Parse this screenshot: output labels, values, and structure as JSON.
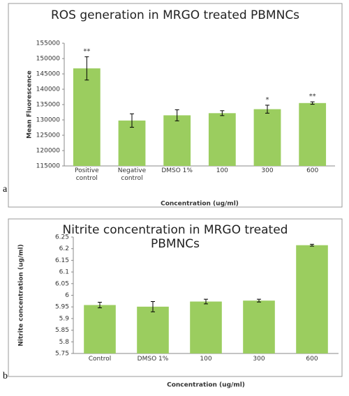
{
  "chart_data": [
    {
      "type": "bar",
      "panel_label": "a",
      "title": "ROS generation in MRGO treated PBMNCs",
      "xlabel": "Concentration (ug/ml)",
      "ylabel": "Mean Fluorescence",
      "categories": [
        "Positive control",
        "Negative control",
        "DMSO 1%",
        "100",
        "300",
        "600"
      ],
      "values": [
        146800,
        129800,
        131500,
        132200,
        133500,
        135500
      ],
      "errors": [
        3800,
        2200,
        1800,
        800,
        1300,
        400
      ],
      "significance": [
        "**",
        null,
        null,
        null,
        "*",
        "**"
      ],
      "color": "#9bcd5f",
      "ylim": [
        115000,
        155000
      ],
      "yticks": [
        115000,
        120000,
        125000,
        130000,
        135000,
        140000,
        145000,
        150000,
        155000
      ],
      "grid": false
    },
    {
      "type": "bar",
      "panel_label": "b",
      "title": "Nitrite concentration in MRGO treated PBMNCs",
      "xlabel": "Concentration (ug/ml)",
      "ylabel": "Nitrite concentration (ug/ml)",
      "categories": [
        "Control",
        "DMSO 1%",
        "100",
        "300",
        "600"
      ],
      "values": [
        5.958,
        5.951,
        5.973,
        5.977,
        6.215
      ],
      "errors": [
        0.012,
        0.022,
        0.01,
        0.006,
        0.004
      ],
      "color": "#9bcd5f",
      "ylim": [
        5.75,
        6.25
      ],
      "yticks": [
        5.75,
        5.8,
        5.85,
        5.9,
        5.95,
        6,
        6.05,
        6.1,
        6.15,
        6.2,
        6.25
      ],
      "grid": false
    }
  ]
}
